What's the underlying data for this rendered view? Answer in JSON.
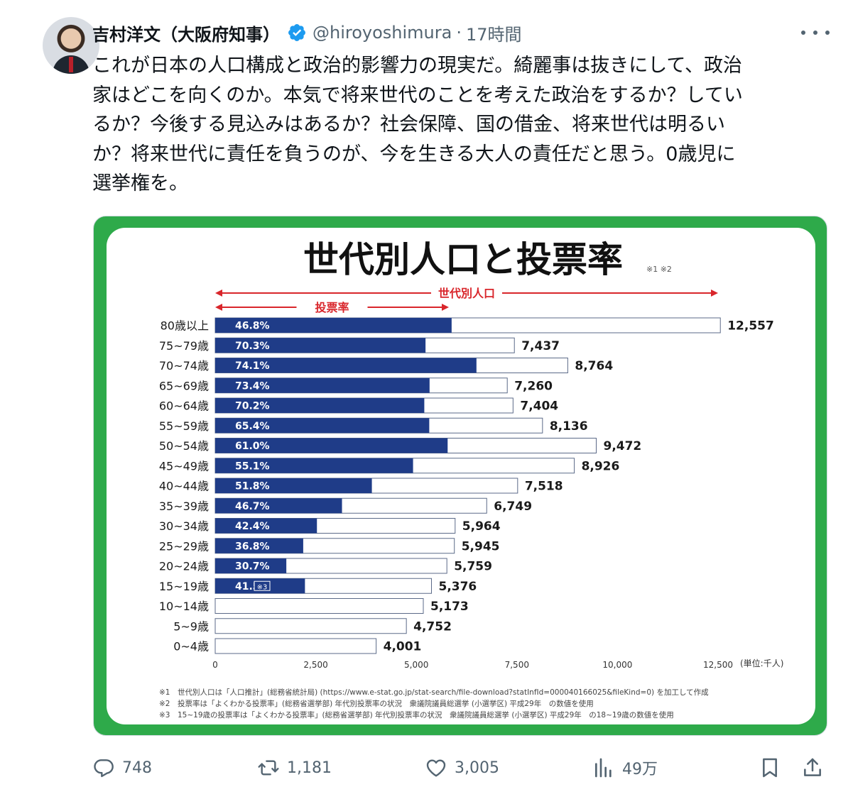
{
  "tweet": {
    "author_name": "吉村洋文（大阪府知事）",
    "handle": "@hiroyoshimura",
    "separator": "·",
    "time": "17時間",
    "text": "これが日本の人口構成と政治的影響力の現実だ。綺麗事は抜きにして、政治\n家はどこを向くのか。本気で将来世代のことを考えた政治をするか？してい\nるか？今後する見込みはあるか？社会保障、国の借金、将来世代は明るい\nか？将来世代に責任を負うのが、今を生きる大人の責任だと思う。0歳児に\n選挙権を。"
  },
  "icons": {
    "verified": "verified-badge-icon",
    "more": "more-icon",
    "reply": "reply-icon",
    "retweet": "retweet-icon",
    "like": "like-icon",
    "views": "views-icon",
    "bookmark": "bookmark-icon",
    "share": "share-icon"
  },
  "actions": {
    "replies": "748",
    "retweets": "1,181",
    "likes": "3,005",
    "views": "49万"
  },
  "colors": {
    "verified": "#1d9bf0",
    "frame_green": "#2eaa4a",
    "bar_navy": "#1f3c88",
    "arrow_red": "#d9262b"
  },
  "chart_data": {
    "type": "bar",
    "title": "世代別人口と投票率",
    "title_notes": "※1  ※2",
    "legend_population": "世代別人口",
    "legend_turnout": "投票率",
    "unit": "(単位:千人)",
    "xlim": [
      0,
      12500
    ],
    "xticks": [
      "0",
      "2,500",
      "5,000",
      "7,500",
      "10,000",
      "12,500"
    ],
    "xtick_values": [
      0,
      2500,
      5000,
      7500,
      10000,
      12500
    ],
    "categories": [
      "80歳以上",
      "75~79歳",
      "70~74歳",
      "65~69歳",
      "60~64歳",
      "55~59歳",
      "50~54歳",
      "45~49歳",
      "40~44歳",
      "35~39歳",
      "30~34歳",
      "25~29歳",
      "20~24歳",
      "15~19歳",
      "10~14歳",
      "5~9歳",
      "0~4歳"
    ],
    "series": [
      {
        "name": "世代別人口",
        "values": [
          12557,
          7437,
          8764,
          7260,
          7404,
          8136,
          9472,
          8926,
          7518,
          6749,
          5964,
          5945,
          5759,
          5376,
          5173,
          4752,
          4001
        ],
        "labels": [
          "12,557",
          "7,437",
          "8,764",
          "7,260",
          "7,404",
          "8,136",
          "9,472",
          "8,926",
          "7,518",
          "6,749",
          "5,964",
          "5,945",
          "5,759",
          "5,376",
          "5,173",
          "4,752",
          "4,001"
        ]
      },
      {
        "name": "投票率",
        "values": [
          46.8,
          70.3,
          74.1,
          73.4,
          70.2,
          65.4,
          61.0,
          55.1,
          51.8,
          46.7,
          42.4,
          36.8,
          30.7,
          41.5,
          null,
          null,
          null
        ],
        "labels": [
          "46.8%",
          "70.3%",
          "74.1%",
          "73.4%",
          "70.2%",
          "65.4%",
          "61.0%",
          "55.1%",
          "51.8%",
          "46.7%",
          "42.4%",
          "36.8%",
          "30.7%",
          "41.5%",
          "",
          "",
          ""
        ]
      }
    ],
    "note_marker_15_19": "※3",
    "footnotes": [
      "※1　世代別人口は「人口推計」(総務省統計局) (https://www.e-stat.go.jp/stat-search/file-download?statInfId=000040166025&fileKind=0) を加工して作成",
      "※2　投票率は「よくわかる投票率」(総務省選挙部) 年代別投票率の状況　衆議院議員総選挙 (小選挙区) 平成29年　の数値を使用",
      "※3　15~19歳の投票率は「よくわかる投票率」(総務省選挙部) 年代別投票率の状況　衆議院議員総選挙 (小選挙区) 平成29年　の18~19歳の数値を使用"
    ]
  }
}
